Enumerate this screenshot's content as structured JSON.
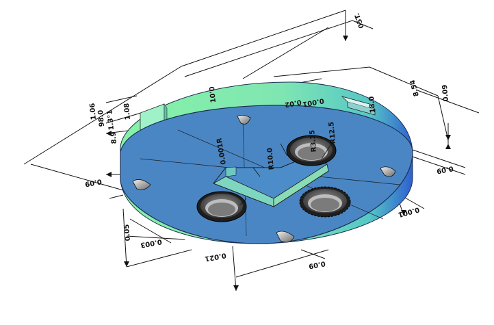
{
  "drawing": {
    "colors": {
      "plate_top": "#4b86c4",
      "plate_top_edge": "#3a74b4",
      "plate_side_light": "#86f2a6",
      "plate_side_mid": "#56d6b6",
      "plate_side_dark": "#2f5fd0",
      "pocket": "#7fd6c0",
      "hole_dark": "#3e3e3e",
      "hole_light": "#cfcfcf"
    },
    "dimensions": [
      {
        "id": "d1",
        "text": "05T."
      },
      {
        "id": "d2",
        "text": "0.09"
      },
      {
        "id": "d3",
        "text": "0.001"
      },
      {
        "id": "d4",
        "text": "0.02"
      },
      {
        "id": "d5",
        "text": "8.54"
      },
      {
        "id": "d6",
        "text": "10'0"
      },
      {
        "id": "d7",
        "text": "1.3°1"
      },
      {
        "id": "d8",
        "text": "0.09"
      },
      {
        "id": "d9",
        "text": "0.09"
      },
      {
        "id": "d10",
        "text": "0.001"
      },
      {
        "id": "d11",
        "text": "0.021"
      },
      {
        "id": "d12",
        "text": "0.003"
      },
      {
        "id": "d13",
        "text": "0.05"
      },
      {
        "id": "d14",
        "text": "0.09"
      },
      {
        "id": "d15",
        "text": "0.001R"
      },
      {
        "id": "d16",
        "text": "R10.0"
      },
      {
        "id": "d17",
        "text": "R3.15"
      },
      {
        "id": "d18",
        "text": "18.0"
      },
      {
        "id": "d19",
        "text": "R12.5"
      },
      {
        "id": "d20",
        "text": "1.08"
      },
      {
        "id": "d21",
        "text": "1.06"
      },
      {
        "id": "d22",
        "text": "98.0"
      },
      {
        "id": "d23",
        "text": "8.9"
      }
    ]
  }
}
